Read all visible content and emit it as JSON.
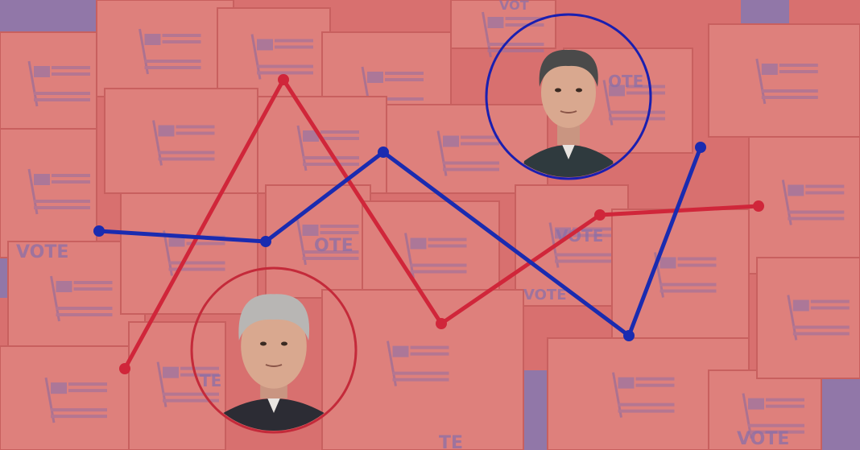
{
  "colors": {
    "background": "#d8706f",
    "background_shadow": "#7f79b6",
    "red_line": "#d0263a",
    "blue_line": "#1a2bb0",
    "red_circle": "#c42a3a",
    "blue_circle": "#1a1fb0"
  },
  "background_lettering": [
    "VOTE",
    "OTE",
    "VOTE",
    "VOTE",
    "TE",
    "TE",
    "VOTE",
    "OTE",
    "VOT"
  ],
  "icons": [
    "ballot-box-flag-icon",
    "portrait-man-dark-hair",
    "portrait-man-gray-hair"
  ]
}
